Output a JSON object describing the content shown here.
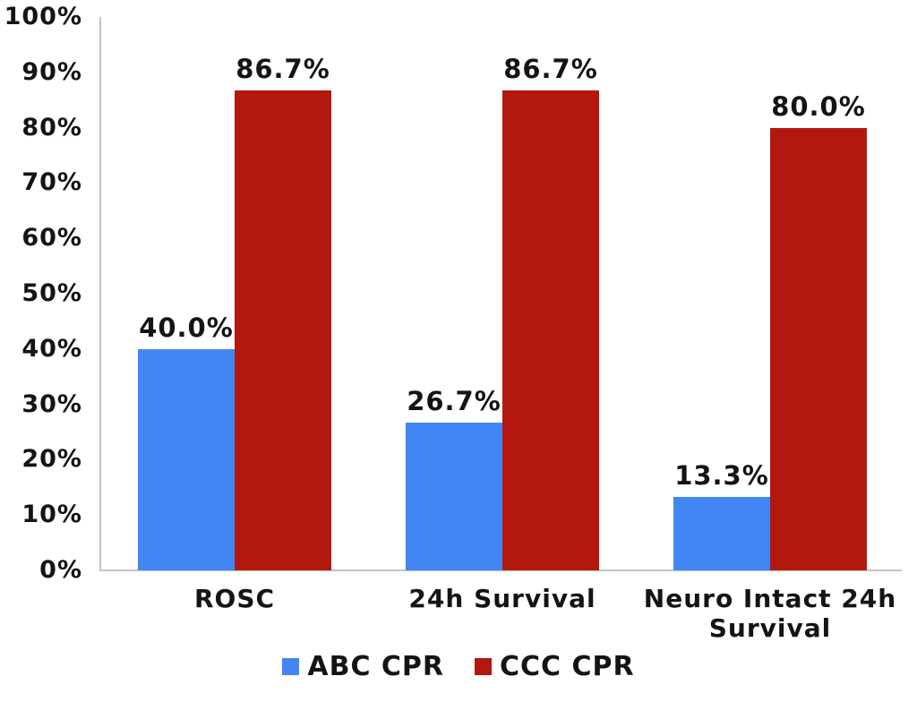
{
  "chart_data": {
    "type": "bar",
    "title": "",
    "xlabel": "",
    "ylabel": "",
    "categories": [
      "ROSC",
      "24h Survival",
      "Neuro Intact 24h Survival"
    ],
    "series": [
      {
        "name": "ABC CPR",
        "color": "#4285F4",
        "values": [
          40.0,
          26.7,
          13.3
        ],
        "labels": [
          "40.0%",
          "26.7%",
          "13.3%"
        ]
      },
      {
        "name": "CCC CPR",
        "color": "#B2180D",
        "values": [
          86.7,
          86.7,
          80.0
        ],
        "labels": [
          "86.7%",
          "86.7%",
          "80.0%"
        ]
      }
    ],
    "y_axis": {
      "min": 0,
      "max": 100,
      "step": 10,
      "tick_labels": [
        "0%",
        "10%",
        "20%",
        "30%",
        "40%",
        "50%",
        "60%",
        "70%",
        "80%",
        "90%",
        "100%"
      ]
    },
    "ylim": [
      0,
      100
    ],
    "grid": false,
    "legend_position": "bottom",
    "axis_color": "#c3c3c3",
    "text_color": "#141414"
  }
}
